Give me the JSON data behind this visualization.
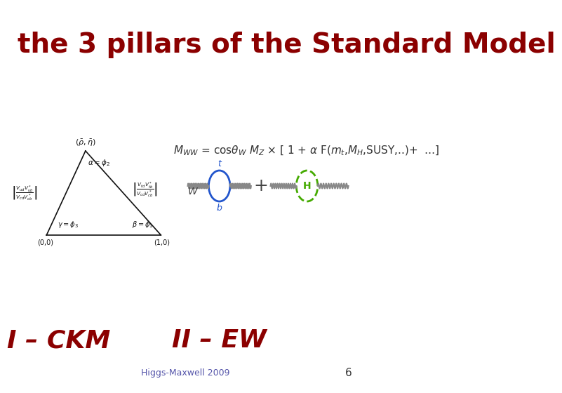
{
  "title": "the 3 pillars of the Standard Model",
  "title_color": "#8B0000",
  "title_fontsize": 28,
  "bg_color": "#ffffff",
  "label_ckm": "I – CKM",
  "label_ew": "II – EW",
  "label_bottom": "Higgs-Maxwell 2009",
  "label_page": "6",
  "label_color": "#8B0000",
  "footer_color": "#5555aa",
  "formula": "M$_{WW}$ = cosθ$_W$ M$_Z$ × [ 1 + α F(m$_t$,M$_H$,SUSY,..)+  …]",
  "formula_color_main": "#333333",
  "formula_mt_color": "#cc4400",
  "formula_MH_color": "#cc4400",
  "triangle_color": "#111111",
  "circle_color": "#2255cc",
  "higgs_color": "#44aa00"
}
